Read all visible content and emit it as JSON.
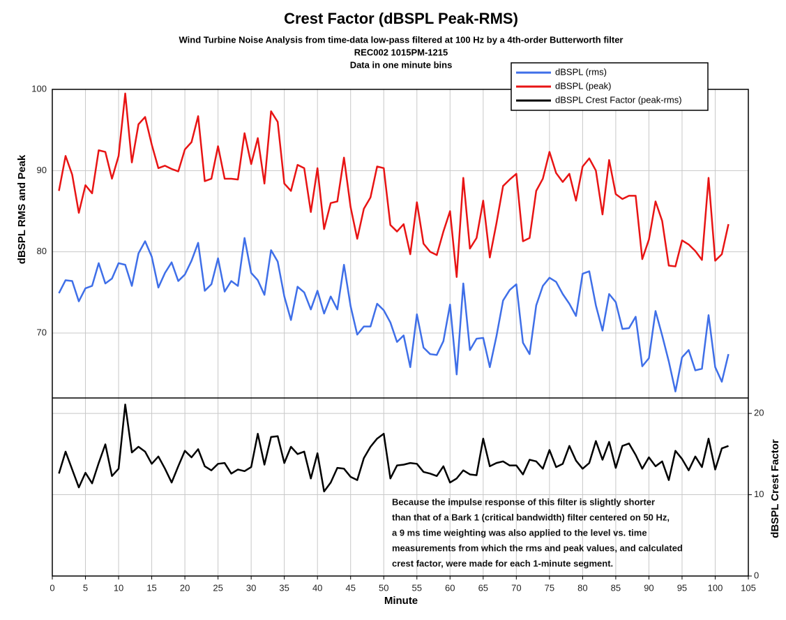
{
  "chart_data": {
    "type": "line",
    "title": "Crest Factor (dBSPL Peak-RMS)",
    "subtitle": [
      "Wind Turbine Noise Analysis from time-data low-pass filtered at 100 Hz by a 4th-order Butterworth filter",
      "REC002 1015PM-1215",
      "Data in one minute bins"
    ],
    "xlabel": "Minute",
    "ylabel": "dBSPL RMS and Peak",
    "y2label": "dBSPL Crest Factor",
    "annotation": [
      "Because the impulse response of this filter is slightly shorter",
      "than that of a Bark 1 (critical bandwidth) filter centered on 50 Hz,",
      "a 9 ms time weighting was also applied to the level vs. time",
      "measurements from which the rms and peak values, and calculated",
      "crest factor, were made for each 1-minute segment."
    ],
    "xlim": [
      0,
      105
    ],
    "xticks": [
      0,
      5,
      10,
      15,
      20,
      25,
      30,
      35,
      40,
      45,
      50,
      55,
      60,
      65,
      70,
      75,
      80,
      85,
      90,
      95,
      100,
      105
    ],
    "ylim": [
      62,
      100
    ],
    "yticks": [
      70,
      80,
      90,
      100
    ],
    "y2lim": [
      0,
      21.9
    ],
    "y2ticks": [
      0,
      10,
      20
    ],
    "grid": true,
    "legend": "upper right",
    "x": [
      1,
      2,
      3,
      4,
      5,
      6,
      7,
      8,
      9,
      10,
      11,
      12,
      13,
      14,
      15,
      16,
      17,
      18,
      19,
      20,
      21,
      22,
      23,
      24,
      25,
      26,
      27,
      28,
      29,
      30,
      31,
      32,
      33,
      34,
      35,
      36,
      37,
      38,
      39,
      40,
      41,
      42,
      43,
      44,
      45,
      46,
      47,
      48,
      49,
      50,
      51,
      52,
      53,
      54,
      55,
      56,
      57,
      58,
      59,
      60,
      61,
      62,
      63,
      64,
      65,
      66,
      67,
      68,
      69,
      70,
      71,
      72,
      73,
      74,
      75,
      76,
      77,
      78,
      79,
      80,
      81,
      82,
      83,
      84,
      85,
      86,
      87,
      88,
      89,
      90,
      91,
      92,
      93,
      94,
      95,
      96,
      97,
      98,
      99,
      100,
      101,
      102
    ],
    "series": [
      {
        "name": "dBSPL (rms)",
        "color": "#3f6fe8",
        "values": [
          74.9,
          76.5,
          76.4,
          73.9,
          75.5,
          75.8,
          78.6,
          76.1,
          76.7,
          78.6,
          78.4,
          75.8,
          79.8,
          81.3,
          79.4,
          75.6,
          77.4,
          78.7,
          76.4,
          77.2,
          78.9,
          81.1,
          75.2,
          76.0,
          79.2,
          75.1,
          76.4,
          75.8,
          81.7,
          77.4,
          76.5,
          74.7,
          80.2,
          78.8,
          74.5,
          71.6,
          75.7,
          75.0,
          72.9,
          75.2,
          72.4,
          74.5,
          72.9,
          78.4,
          73.3,
          69.8,
          70.8,
          70.8,
          73.6,
          72.8,
          71.3,
          68.9,
          69.7,
          65.8,
          72.3,
          68.2,
          67.4,
          67.3,
          69.0,
          73.5,
          64.9,
          76.1,
          67.9,
          69.3,
          69.4,
          65.8,
          69.6,
          74.0,
          75.3,
          76.0,
          68.8,
          67.4,
          73.4,
          75.8,
          76.8,
          76.3,
          74.8,
          73.6,
          72.1,
          77.3,
          77.6,
          73.4,
          70.3,
          74.8,
          73.8,
          70.5,
          70.6,
          72.0,
          65.9,
          66.9,
          72.7,
          69.7,
          66.5,
          62.8,
          67.0,
          67.9,
          65.4,
          65.6,
          72.2,
          65.8,
          64.0,
          67.4
        ]
      },
      {
        "name": "dBSPL (peak)",
        "color": "#e81414",
        "values": [
          87.5,
          91.8,
          89.5,
          84.8,
          88.2,
          87.2,
          92.5,
          92.3,
          89.0,
          91.8,
          99.5,
          91.0,
          95.7,
          96.6,
          93.2,
          90.3,
          90.6,
          90.2,
          89.9,
          92.6,
          93.5,
          96.7,
          88.7,
          89.0,
          93.0,
          89.0,
          89.0,
          88.9,
          94.6,
          90.8,
          94.0,
          88.4,
          97.3,
          96.0,
          88.4,
          87.5,
          90.7,
          90.3,
          84.9,
          90.3,
          82.8,
          86.0,
          86.2,
          91.6,
          85.5,
          81.6,
          85.3,
          86.7,
          90.5,
          90.3,
          83.3,
          82.5,
          83.4,
          79.7,
          86.1,
          81.0,
          80.0,
          79.6,
          82.5,
          85.0,
          76.9,
          89.1,
          80.4,
          81.7,
          86.3,
          79.3,
          83.5,
          88.1,
          88.9,
          89.6,
          81.3,
          81.7,
          87.5,
          89.0,
          92.3,
          89.7,
          88.6,
          89.6,
          86.3,
          90.5,
          91.5,
          90.0,
          84.6,
          91.3,
          87.1,
          86.5,
          86.9,
          86.9,
          79.1,
          81.5,
          86.2,
          83.8,
          78.3,
          78.2,
          81.4,
          80.9,
          80.1,
          79.0,
          89.1,
          78.9,
          79.7,
          83.4
        ]
      },
      {
        "name": "dBSPL Crest Factor (peak-rms)",
        "color": "#000000",
        "axis": "y2",
        "values": [
          12.6,
          15.3,
          13.1,
          10.9,
          12.7,
          11.4,
          13.9,
          16.2,
          12.3,
          13.2,
          21.1,
          15.2,
          15.9,
          15.3,
          13.8,
          14.7,
          13.2,
          11.5,
          13.5,
          15.4,
          14.6,
          15.6,
          13.5,
          13.0,
          13.8,
          13.9,
          12.6,
          13.1,
          12.9,
          13.4,
          17.5,
          13.7,
          17.1,
          17.2,
          13.9,
          15.9,
          15.0,
          15.3,
          12.0,
          15.1,
          10.4,
          11.5,
          13.3,
          13.2,
          12.2,
          11.8,
          14.5,
          15.9,
          16.9,
          17.5,
          12.0,
          13.6,
          13.7,
          13.9,
          13.8,
          12.8,
          12.6,
          12.3,
          13.5,
          11.5,
          12.0,
          13.0,
          12.5,
          12.4,
          16.9,
          13.5,
          13.9,
          14.1,
          13.6,
          13.6,
          12.5,
          14.3,
          14.1,
          13.2,
          15.5,
          13.4,
          13.8,
          16.0,
          14.2,
          13.2,
          13.9,
          16.6,
          14.3,
          16.5,
          13.3,
          16.0,
          16.3,
          14.9,
          13.2,
          14.6,
          13.5,
          14.1,
          11.8,
          15.4,
          14.4,
          13.0,
          14.7,
          13.4,
          16.9,
          13.1,
          15.7,
          16.0
        ]
      }
    ]
  }
}
